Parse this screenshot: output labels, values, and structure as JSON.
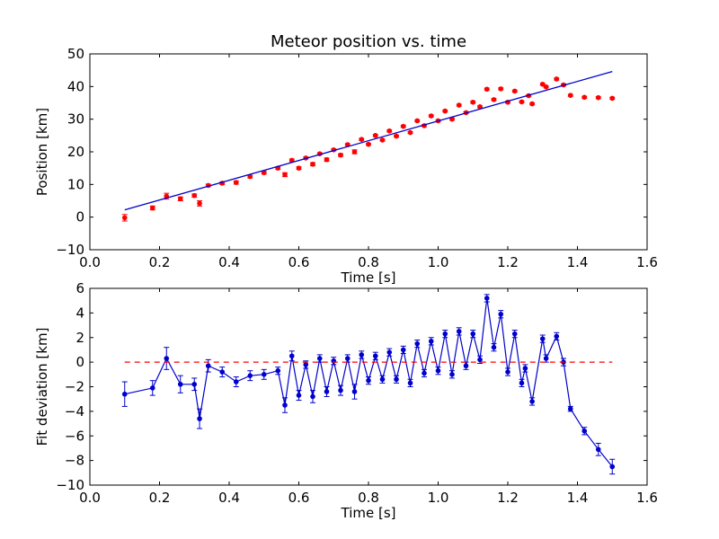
{
  "chart_data": [
    {
      "type": "scatter",
      "title": "Meteor position vs. time",
      "xlabel": "Time [s]",
      "ylabel": "Position [km]",
      "xlim": [
        0.0,
        1.6
      ],
      "ylim": [
        -10,
        50
      ],
      "xticks": [
        0.0,
        0.2,
        0.4,
        0.6,
        0.8,
        1.0,
        1.2,
        1.4,
        1.6
      ],
      "yticks": [
        -10,
        0,
        10,
        20,
        30,
        40,
        50
      ],
      "xtick_labels": [
        "0.0",
        "0.2",
        "0.4",
        "0.6",
        "0.8",
        "1.0",
        "1.2",
        "1.4",
        "1.6"
      ],
      "ytick_labels": [
        "−10",
        "0",
        "10",
        "20",
        "30",
        "40",
        "50"
      ],
      "grid": false,
      "series": [
        {
          "kind": "errorbar-points",
          "color": "#ff0000",
          "x": [
            0.1,
            0.18,
            0.22,
            0.26,
            0.3,
            0.315,
            0.34,
            0.38,
            0.42,
            0.46,
            0.5,
            0.54,
            0.56,
            0.58,
            0.6,
            0.62,
            0.64,
            0.66,
            0.68,
            0.7,
            0.72,
            0.74,
            0.76,
            0.78,
            0.8,
            0.82,
            0.84,
            0.86,
            0.88,
            0.9,
            0.92,
            0.94,
            0.96,
            0.98,
            1.0,
            1.02,
            1.04,
            1.06,
            1.08,
            1.1,
            1.12,
            1.14,
            1.16,
            1.18,
            1.2,
            1.22,
            1.24,
            1.26,
            1.27,
            1.3,
            1.31,
            1.34,
            1.36,
            1.38,
            1.42,
            1.46,
            1.5
          ],
          "y": [
            -0.2,
            2.8,
            6.4,
            5.6,
            6.6,
            4.2,
            9.7,
            10.4,
            10.6,
            12.4,
            13.6,
            15.0,
            13.0,
            17.4,
            15.0,
            18.1,
            16.2,
            19.4,
            17.6,
            20.6,
            19.0,
            22.2,
            20.0,
            23.8,
            22.3,
            25.0,
            23.6,
            26.4,
            24.8,
            27.8,
            25.9,
            29.5,
            28.0,
            31.0,
            29.5,
            32.5,
            30.0,
            34.3,
            32.0,
            35.2,
            33.8,
            39.2,
            36.0,
            39.3,
            35.2,
            38.6,
            35.3,
            37.2,
            34.7,
            40.7,
            39.9,
            42.3,
            40.5,
            37.3,
            36.7,
            36.6,
            36.4
          ],
          "yerr": [
            1.0,
            0.6,
            0.9,
            0.6,
            0.5,
            0.8,
            0.4,
            0.4,
            0.5,
            0.4,
            0.4,
            0.4,
            0.6,
            0.4,
            0.4,
            0.3,
            0.5,
            0.3,
            0.5,
            0.3,
            0.4,
            0.3,
            0.6,
            0.3,
            0.3,
            0.3,
            0.3,
            0.3,
            0.3,
            0.3,
            0.3,
            0.3,
            0.3,
            0.3,
            0.3,
            0.3,
            0.3,
            0.3,
            0.3,
            0.3,
            0.3,
            0.3,
            0.3,
            0.3,
            0.3,
            0.3,
            0.3,
            0.3,
            0.3,
            0.3,
            0.3,
            0.3,
            0.3,
            0.3,
            0.3,
            0.3,
            0.3
          ]
        },
        {
          "kind": "fit-line",
          "color": "#0000cc",
          "x": [
            0.1,
            1.5
          ],
          "y": [
            2.2,
            44.6
          ]
        }
      ]
    },
    {
      "type": "line",
      "xlabel": "Time [s]",
      "ylabel": "Fit deviation [km]",
      "xlim": [
        0.0,
        1.6
      ],
      "ylim": [
        -10,
        6
      ],
      "xticks": [
        0.0,
        0.2,
        0.4,
        0.6,
        0.8,
        1.0,
        1.2,
        1.4,
        1.6
      ],
      "yticks": [
        -10,
        -8,
        -6,
        -4,
        -2,
        0,
        2,
        4,
        6
      ],
      "xtick_labels": [
        "0.0",
        "0.2",
        "0.4",
        "0.6",
        "0.8",
        "1.0",
        "1.2",
        "1.4",
        "1.6"
      ],
      "ytick_labels": [
        "−10",
        "−8",
        "−6",
        "−4",
        "−2",
        "0",
        "2",
        "4",
        "6"
      ],
      "grid": false,
      "series": [
        {
          "kind": "errorbar-line",
          "color": "#0000cc",
          "x": [
            0.1,
            0.18,
            0.22,
            0.26,
            0.3,
            0.315,
            0.34,
            0.38,
            0.42,
            0.46,
            0.5,
            0.54,
            0.56,
            0.58,
            0.6,
            0.62,
            0.64,
            0.66,
            0.68,
            0.7,
            0.72,
            0.74,
            0.76,
            0.78,
            0.8,
            0.82,
            0.84,
            0.86,
            0.88,
            0.9,
            0.92,
            0.94,
            0.96,
            0.98,
            1.0,
            1.02,
            1.04,
            1.06,
            1.08,
            1.1,
            1.12,
            1.14,
            1.16,
            1.18,
            1.2,
            1.22,
            1.24,
            1.25,
            1.27,
            1.3,
            1.31,
            1.34,
            1.36,
            1.38,
            1.42,
            1.46,
            1.5
          ],
          "y": [
            -2.6,
            -2.1,
            0.3,
            -1.8,
            -1.8,
            -4.6,
            -0.3,
            -0.8,
            -1.6,
            -1.1,
            -1.0,
            -0.7,
            -3.5,
            0.5,
            -2.7,
            -0.2,
            -2.8,
            0.3,
            -2.4,
            0.1,
            -2.3,
            0.3,
            -2.4,
            0.6,
            -1.5,
            0.5,
            -1.4,
            0.8,
            -1.4,
            1.0,
            -1.7,
            1.5,
            -0.9,
            1.7,
            -0.7,
            2.3,
            -1.0,
            2.5,
            -0.3,
            2.3,
            0.2,
            5.2,
            1.2,
            3.9,
            -0.8,
            2.3,
            -1.7,
            -0.5,
            -3.2,
            1.9,
            0.3,
            2.1,
            0.0,
            -3.8,
            -5.6,
            -7.1,
            -8.5
          ],
          "yerr": [
            1.0,
            0.6,
            0.9,
            0.7,
            0.5,
            0.8,
            0.5,
            0.4,
            0.4,
            0.4,
            0.4,
            0.3,
            0.6,
            0.4,
            0.4,
            0.3,
            0.5,
            0.3,
            0.4,
            0.3,
            0.4,
            0.3,
            0.6,
            0.3,
            0.3,
            0.3,
            0.3,
            0.3,
            0.3,
            0.3,
            0.3,
            0.3,
            0.3,
            0.3,
            0.3,
            0.3,
            0.3,
            0.3,
            0.3,
            0.3,
            0.3,
            0.3,
            0.3,
            0.3,
            0.3,
            0.3,
            0.3,
            0.3,
            0.3,
            0.3,
            0.3,
            0.3,
            0.3,
            0.2,
            0.3,
            0.5,
            0.6
          ]
        },
        {
          "kind": "reference-line",
          "color": "#ff0000",
          "style": "dashed",
          "x": [
            0.1,
            1.5
          ],
          "y": [
            0,
            0
          ]
        }
      ]
    }
  ]
}
